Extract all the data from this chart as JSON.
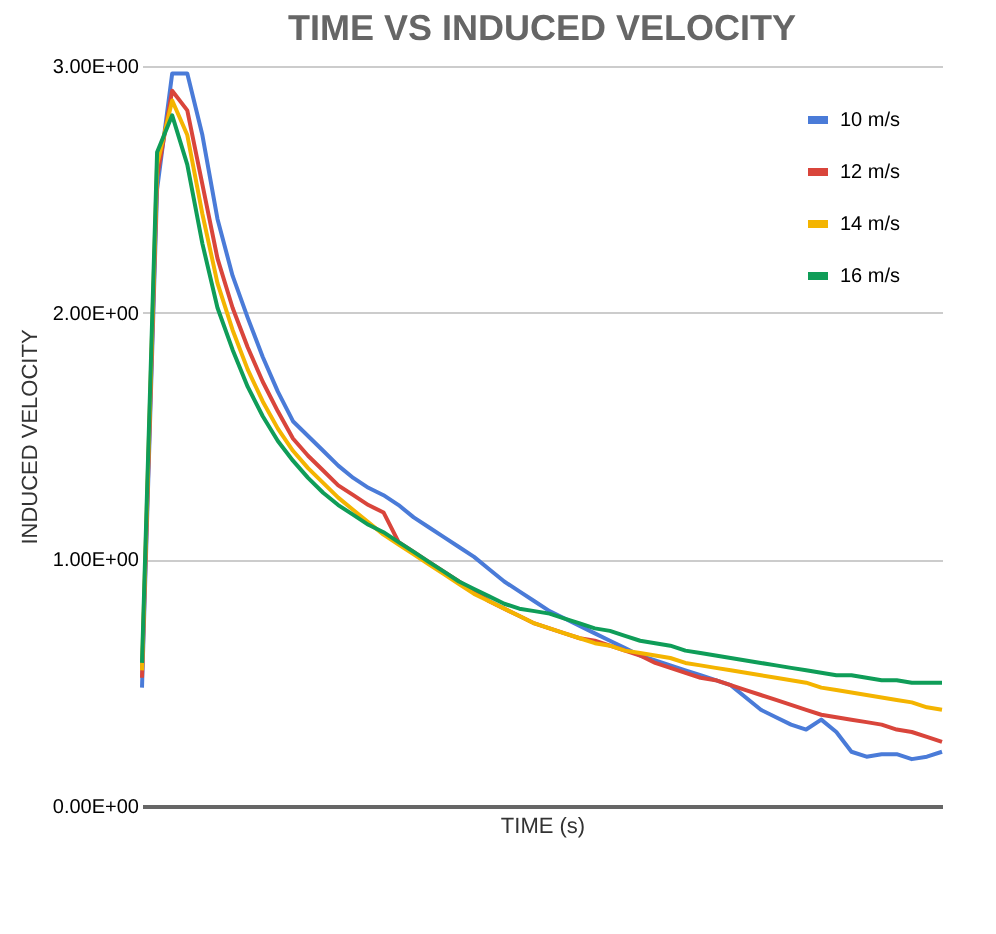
{
  "chart_data": {
    "type": "line",
    "title": "TIME VS INDUCED VELOCITY",
    "xlabel": "TIME (s)",
    "ylabel": "INDUCED VELOCITY",
    "categories": [
      null,
      null,
      null,
      null,
      null,
      null,
      null,
      null,
      null,
      null,
      null,
      null,
      null,
      null,
      null,
      null,
      null,
      null,
      null,
      null,
      null,
      null,
      null,
      null,
      null,
      null,
      null,
      null,
      null,
      null,
      null,
      null,
      null,
      null,
      null,
      null,
      null,
      null,
      null,
      null,
      null,
      null,
      null,
      null,
      null,
      null,
      null,
      null,
      null,
      null,
      null,
      null,
      null,
      null
    ],
    "ylim": [
      0,
      3
    ],
    "yticks": [
      {
        "value": 0,
        "label": "0.00E+00"
      },
      {
        "value": 1,
        "label": "1.00E+00"
      },
      {
        "value": 2,
        "label": "2.00E+00"
      },
      {
        "value": 3,
        "label": "3.00E+00"
      }
    ],
    "grid": "y",
    "legend": "top right",
    "line_style": "solid",
    "series": [
      {
        "name": "10 m/s",
        "color": "#4a7bd8",
        "values": [
          0.48,
          2.5,
          2.97,
          2.97,
          2.72,
          2.38,
          2.15,
          1.98,
          1.82,
          1.68,
          1.56,
          1.5,
          1.44,
          1.38,
          1.33,
          1.29,
          1.26,
          1.22,
          1.17,
          1.13,
          1.09,
          1.05,
          1.01,
          0.96,
          0.91,
          0.87,
          0.83,
          0.79,
          0.76,
          0.73,
          0.7,
          0.67,
          0.64,
          0.61,
          0.59,
          0.57,
          0.55,
          0.53,
          0.51,
          0.49,
          0.44,
          0.39,
          0.36,
          0.33,
          0.31,
          0.35,
          0.3,
          0.22,
          0.2,
          0.21,
          0.21,
          0.19,
          0.2,
          0.22
        ]
      },
      {
        "name": "12 m/s",
        "color": "#d9453b",
        "values": [
          0.52,
          2.55,
          2.9,
          2.82,
          2.52,
          2.22,
          2.02,
          1.86,
          1.72,
          1.6,
          1.49,
          1.42,
          1.36,
          1.3,
          1.26,
          1.22,
          1.19,
          1.07,
          1.03,
          0.99,
          0.95,
          0.91,
          0.87,
          0.83,
          0.8,
          0.77,
          0.74,
          0.72,
          0.7,
          0.68,
          0.67,
          0.65,
          0.63,
          0.61,
          0.58,
          0.56,
          0.54,
          0.52,
          0.51,
          0.49,
          0.47,
          0.45,
          0.43,
          0.41,
          0.39,
          0.37,
          0.36,
          0.35,
          0.34,
          0.33,
          0.31,
          0.3,
          0.28,
          0.26
        ]
      },
      {
        "name": "14 m/s",
        "color": "#f4b400",
        "values": [
          0.55,
          2.6,
          2.86,
          2.72,
          2.4,
          2.12,
          1.93,
          1.77,
          1.64,
          1.53,
          1.44,
          1.37,
          1.31,
          1.25,
          1.2,
          1.15,
          1.1,
          1.06,
          1.02,
          0.98,
          0.94,
          0.9,
          0.86,
          0.83,
          0.8,
          0.77,
          0.74,
          0.72,
          0.7,
          0.68,
          0.66,
          0.65,
          0.63,
          0.62,
          0.61,
          0.6,
          0.58,
          0.57,
          0.56,
          0.55,
          0.54,
          0.53,
          0.52,
          0.51,
          0.5,
          0.48,
          0.47,
          0.46,
          0.45,
          0.44,
          0.43,
          0.42,
          0.4,
          0.39
        ]
      },
      {
        "name": "16 m/s",
        "color": "#0f9d58",
        "values": [
          0.58,
          2.65,
          2.8,
          2.6,
          2.28,
          2.02,
          1.85,
          1.7,
          1.58,
          1.48,
          1.4,
          1.33,
          1.27,
          1.22,
          1.18,
          1.14,
          1.11,
          1.07,
          1.03,
          0.99,
          0.95,
          0.91,
          0.88,
          0.85,
          0.82,
          0.8,
          0.79,
          0.78,
          0.76,
          0.74,
          0.72,
          0.71,
          0.69,
          0.67,
          0.66,
          0.65,
          0.63,
          0.62,
          0.61,
          0.6,
          0.59,
          0.58,
          0.57,
          0.56,
          0.55,
          0.54,
          0.53,
          0.53,
          0.52,
          0.51,
          0.51,
          0.5,
          0.5,
          0.5
        ]
      }
    ]
  }
}
